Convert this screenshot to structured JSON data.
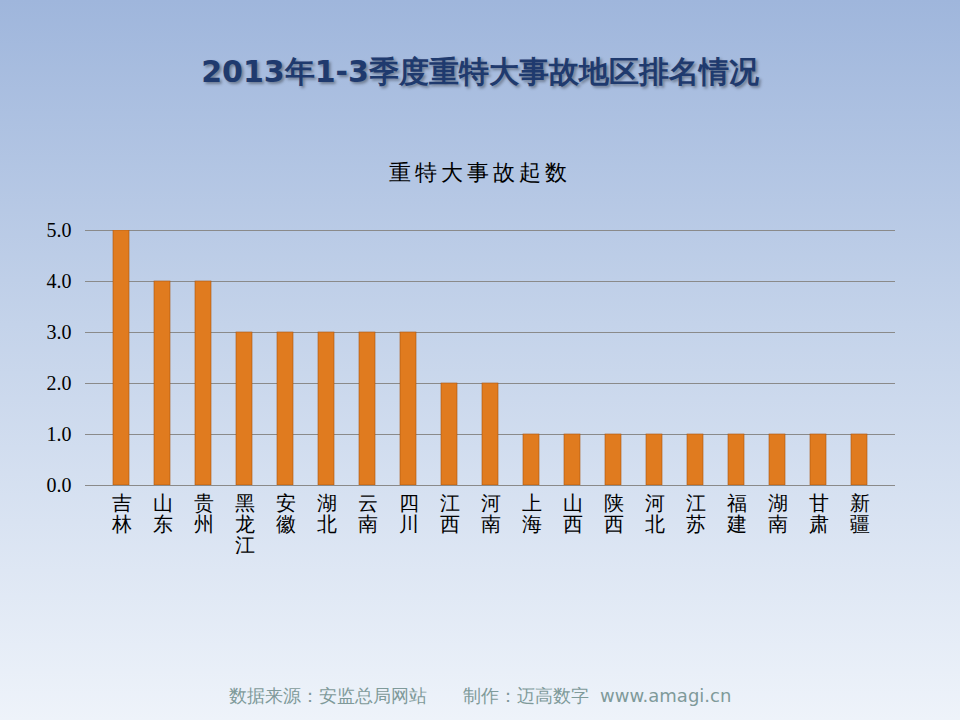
{
  "chart_data": {
    "type": "bar",
    "title": "2013年1-3季度重特大事故地区排名情况",
    "subtitle": "重特大事故起数",
    "caption": "数据来源：安监总局网站　　制作：迈高数字  www.amagi.cn",
    "categories": [
      "吉林",
      "山东",
      "贵州",
      "黑龙江",
      "安徽",
      "湖北",
      "云南",
      "四川",
      "江西",
      "河南",
      "上海",
      "山西",
      "陕西",
      "河北",
      "江苏",
      "福建",
      "湖南",
      "甘肃",
      "新疆"
    ],
    "values": [
      5,
      4,
      4,
      3,
      3,
      3,
      3,
      3,
      2,
      2,
      1,
      1,
      1,
      1,
      1,
      1,
      1,
      1,
      1
    ],
    "color": "#e07b1f",
    "ylim": [
      0,
      5
    ],
    "yticks": [
      0,
      1,
      2,
      3,
      4,
      5
    ],
    "grid": true
  }
}
